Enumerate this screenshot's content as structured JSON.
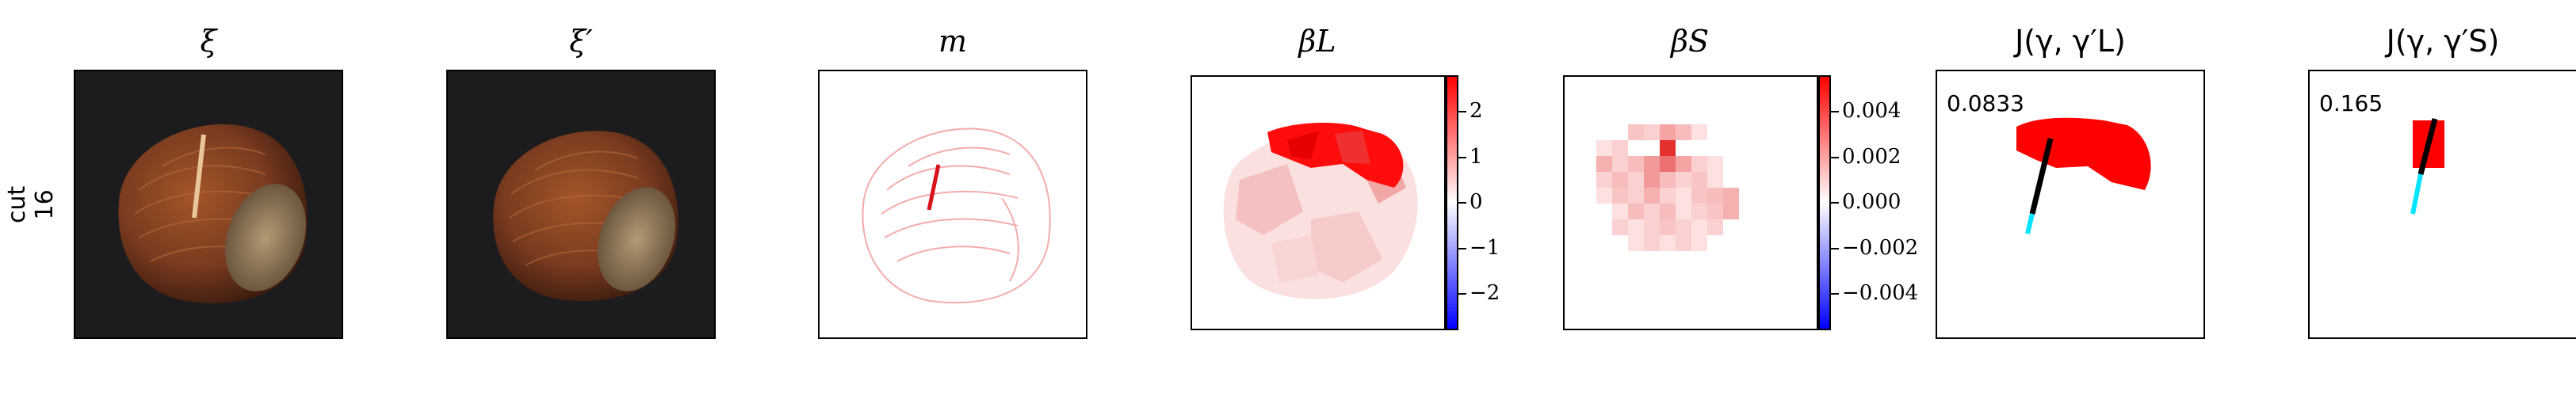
{
  "row_label": {
    "line1": "cut",
    "line2": "16"
  },
  "panels": {
    "xi": {
      "title": "ξ"
    },
    "xi_prime": {
      "title": "ξ′"
    },
    "m": {
      "title": "m"
    },
    "beta_L": {
      "title": "βL",
      "colorbar_ticks": [
        "2",
        "1",
        "0",
        "−1",
        "−2"
      ],
      "colorbar_range": [
        -2.8,
        2.8
      ]
    },
    "beta_S": {
      "title": "βS",
      "colorbar_ticks": [
        "0.004",
        "0.002",
        "0.000",
        "−0.002",
        "−0.004"
      ],
      "colorbar_range": [
        -0.0056,
        0.0056
      ]
    },
    "j_L": {
      "title": "J(γ, γ′L)",
      "score": "0.0833"
    },
    "j_S": {
      "title": "J(γ, γ′S)",
      "score": "0.165"
    }
  },
  "colors": {
    "positive": "#ff0000",
    "negative": "#0000ff",
    "background": "#ffffff",
    "hazelnut": "#7a3b1f",
    "photo_background": "#1c1c1e",
    "true_mask": "#000000",
    "predicted_mask": "#00ffff"
  }
}
